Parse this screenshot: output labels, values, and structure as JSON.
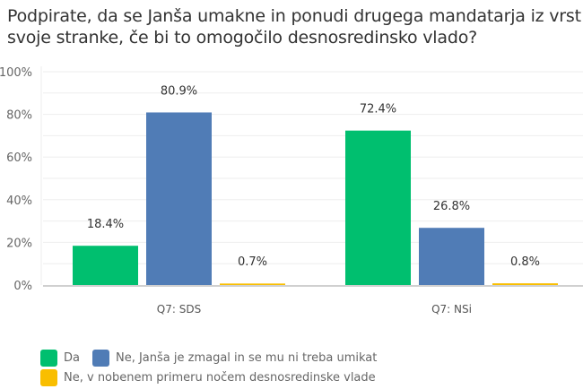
{
  "chart_data": {
    "type": "bar",
    "title": "Podpirate, da se Janša umakne in ponudi drugega mandatarja iz vrst svoje stranke, če bi to omogočilo desnosredinsko vlado?",
    "categories": [
      "Q7: SDS",
      "Q7: NSi"
    ],
    "series": [
      {
        "name": "Da",
        "color": "#00bf6f",
        "values": [
          18.4,
          72.4
        ],
        "labels": [
          "18.4%",
          "72.4%"
        ]
      },
      {
        "name": "Ne, Janša je zmagal in se mu ni treba umikat",
        "color": "#507cb6",
        "values": [
          80.9,
          26.8
        ],
        "labels": [
          "80.9%",
          "26.8%"
        ]
      },
      {
        "name": "Ne, v nobenem primeru nočem desnosredinske vlade",
        "color": "#f9be00",
        "values": [
          0.7,
          0.8
        ],
        "labels": [
          "0.7%",
          "0.8%"
        ]
      }
    ],
    "ylim": [
      0,
      100
    ],
    "yticks": [
      "0%",
      "20%",
      "40%",
      "60%",
      "80%",
      "100%"
    ],
    "xlabel": "",
    "ylabel": "",
    "grid": true,
    "legend": "bottom-left"
  }
}
